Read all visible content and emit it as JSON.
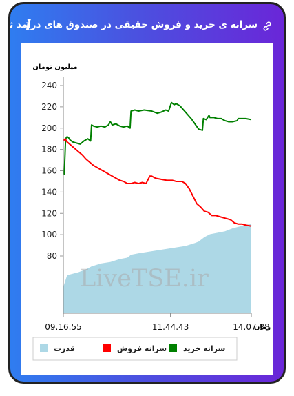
{
  "header": {
    "title": "سرانه ی خرید و فروش حقیقی در صندوق های درآمد ثابت"
  },
  "icons": {
    "info": "i",
    "info_name": "info-icon",
    "link_name": "link-icon"
  },
  "watermark": "LiveTSE.ir",
  "colors": {
    "buy": "#008000",
    "sell": "#ff0000",
    "power": "#add8e6",
    "frame_start": "#2f7df0",
    "frame_end": "#6a26d8"
  },
  "chart_data": {
    "type": "line",
    "ylabel": "میلیون تومان",
    "xlabel": "زمان",
    "yticks": [
      80,
      100,
      120,
      140,
      160,
      180,
      200,
      220,
      240
    ],
    "ylim": [
      80,
      240
    ],
    "xticks": [
      {
        "t": 0.0,
        "label": "09.16.55"
      },
      {
        "t": 0.57,
        "label": "11.44.43"
      },
      {
        "t": 1.0,
        "label": "14.07.38"
      }
    ],
    "legend": [
      "قدرت",
      "سرانه فروش",
      "سرانه خرید"
    ],
    "series": [
      {
        "name": "سرانه خرید",
        "color": "#008000",
        "x": [
          0.0,
          0.005,
          0.012,
          0.02,
          0.028,
          0.035,
          0.05,
          0.07,
          0.09,
          0.11,
          0.13,
          0.145,
          0.15,
          0.16,
          0.18,
          0.2,
          0.22,
          0.24,
          0.25,
          0.26,
          0.28,
          0.3,
          0.32,
          0.34,
          0.355,
          0.36,
          0.38,
          0.4,
          0.43,
          0.47,
          0.5,
          0.52,
          0.545,
          0.56,
          0.575,
          0.59,
          0.6,
          0.62,
          0.65,
          0.68,
          0.72,
          0.74,
          0.745,
          0.76,
          0.775,
          0.78,
          0.8,
          0.82,
          0.84,
          0.86,
          0.88,
          0.9,
          0.925,
          0.93,
          0.95,
          0.97,
          1.0
        ],
        "values": [
          160,
          157,
          190,
          192,
          191,
          189,
          187,
          186,
          185,
          188,
          190,
          188,
          203,
          202,
          201,
          202,
          201,
          203,
          206,
          203,
          204,
          202,
          201,
          202,
          200,
          216,
          217,
          216,
          217,
          216,
          214,
          215,
          217,
          216,
          224,
          222,
          223,
          221,
          215,
          209,
          199,
          198,
          209,
          208,
          212,
          210,
          210,
          209,
          209,
          207,
          206,
          206,
          207,
          209,
          209,
          209,
          208
        ]
      },
      {
        "name": "سرانه فروش",
        "color": "#ff0000",
        "x": [
          0.0,
          0.01,
          0.02,
          0.04,
          0.06,
          0.08,
          0.1,
          0.12,
          0.14,
          0.16,
          0.18,
          0.2,
          0.22,
          0.24,
          0.26,
          0.28,
          0.3,
          0.32,
          0.34,
          0.36,
          0.38,
          0.4,
          0.42,
          0.44,
          0.46,
          0.47,
          0.49,
          0.52,
          0.55,
          0.58,
          0.6,
          0.63,
          0.65,
          0.67,
          0.69,
          0.71,
          0.73,
          0.75,
          0.77,
          0.79,
          0.81,
          0.83,
          0.85,
          0.87,
          0.89,
          0.91,
          0.93,
          0.95,
          0.97,
          1.0
        ],
        "values": [
          188,
          190,
          187,
          184,
          181,
          178,
          175,
          171,
          168,
          165,
          163,
          161,
          159,
          157,
          155,
          153,
          151,
          150,
          148,
          148,
          149,
          148,
          149,
          148,
          155,
          155,
          153,
          152,
          151,
          151,
          150,
          150,
          148,
          143,
          136,
          129,
          126,
          122,
          121,
          118,
          118,
          117,
          116,
          115,
          114,
          111,
          110,
          110,
          109,
          108
        ]
      },
      {
        "name": "قدرت",
        "color": "#add8e6",
        "x": [
          0.0,
          0.01,
          0.02,
          0.05,
          0.08,
          0.1,
          0.12,
          0.15,
          0.2,
          0.25,
          0.3,
          0.34,
          0.36,
          0.4,
          0.45,
          0.5,
          0.55,
          0.6,
          0.65,
          0.7,
          0.72,
          0.75,
          0.78,
          0.82,
          0.86,
          0.9,
          0.93,
          0.96,
          1.0
        ],
        "values": [
          0.18,
          0.22,
          0.26,
          0.27,
          0.28,
          0.29,
          0.3,
          0.32,
          0.34,
          0.35,
          0.37,
          0.38,
          0.4,
          0.41,
          0.42,
          0.43,
          0.44,
          0.45,
          0.46,
          0.48,
          0.49,
          0.52,
          0.54,
          0.55,
          0.56,
          0.58,
          0.59,
          0.6,
          0.61
        ]
      }
    ]
  }
}
